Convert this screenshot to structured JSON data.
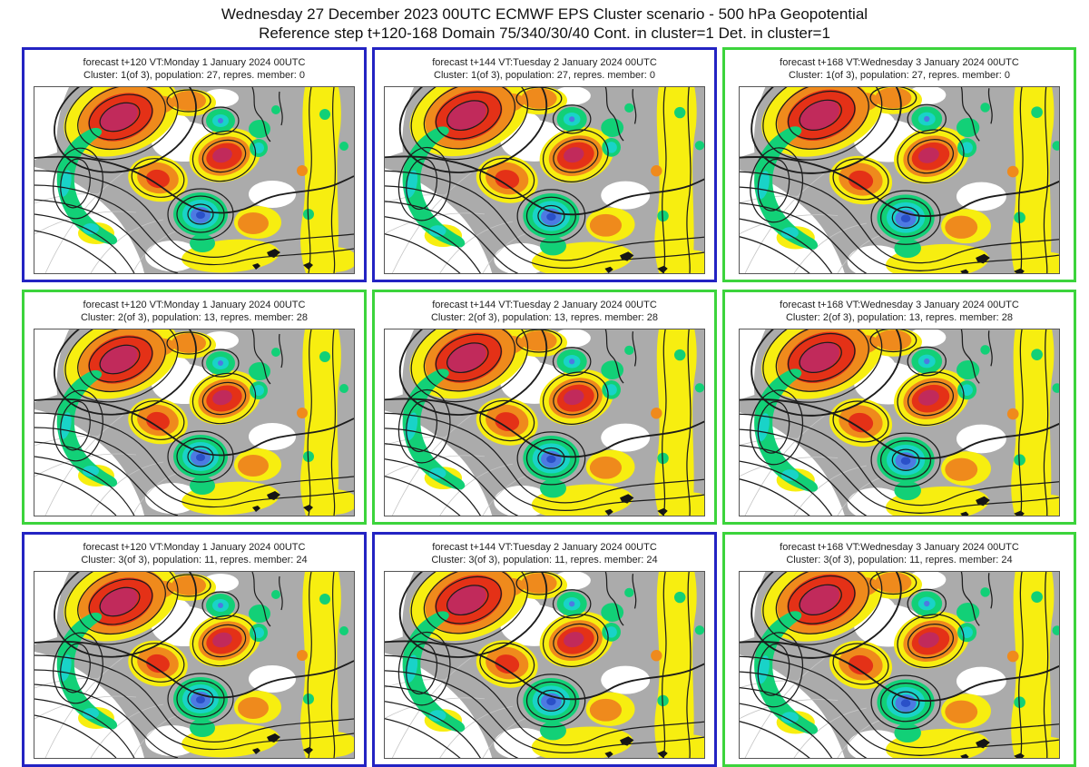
{
  "page": {
    "title_line1": "Wednesday 27 December 2023 00UTC ECMWF EPS Cluster scenario - 500 hPa Geopotential",
    "title_line2": "Reference step t+120-168 Domain 75/340/30/40 Cont. in cluster=1 Det. in cluster=1"
  },
  "palette": {
    "border_blue": "#2323c3",
    "border_green": "#3cd43c",
    "map_gray": "#ababab",
    "yellow": "#f7ee10",
    "orange": "#ef8a1c",
    "red": "#e43117",
    "magenta": "#c12a5b",
    "green": "#12d077",
    "cyan": "#19d3c8",
    "blue": "#4d7ae2",
    "deep_blue": "#2a50c8",
    "contour": "#1c1c1c"
  },
  "panels": [
    {
      "forecast_line": "forecast t+120 VT:Monday 1 January 2024 00UTC",
      "cluster_line": "Cluster: 1(of 3), population: 27, repres. member: 0",
      "border": "blue"
    },
    {
      "forecast_line": "forecast t+144 VT:Tuesday 2 January 2024 00UTC",
      "cluster_line": "Cluster: 1(of 3), population: 27, repres. member: 0",
      "border": "blue"
    },
    {
      "forecast_line": "forecast t+168 VT:Wednesday 3 January 2024 00UTC",
      "cluster_line": "Cluster: 1(of 3), population: 27, repres. member: 0",
      "border": "green"
    },
    {
      "forecast_line": "forecast t+120 VT:Monday 1 January 2024 00UTC",
      "cluster_line": "Cluster: 2(of 3), population: 13, repres. member: 28",
      "border": "green"
    },
    {
      "forecast_line": "forecast t+144 VT:Tuesday 2 January 2024 00UTC",
      "cluster_line": "Cluster: 2(of 3), population: 13, repres. member: 28",
      "border": "green"
    },
    {
      "forecast_line": "forecast t+168 VT:Wednesday 3 January 2024 00UTC",
      "cluster_line": "Cluster: 2(of 3), population: 13, repres. member: 28",
      "border": "green"
    },
    {
      "forecast_line": "forecast t+120 VT:Monday 1 January 2024 00UTC",
      "cluster_line": "Cluster: 3(of 3), population: 11, repres. member: 24",
      "border": "blue"
    },
    {
      "forecast_line": "forecast t+144 VT:Tuesday 2 January 2024 00UTC",
      "cluster_line": "Cluster: 3(of 3), population: 11, repres. member: 24",
      "border": "blue"
    },
    {
      "forecast_line": "forecast t+168 VT:Wednesday 3 January 2024 00UTC",
      "cluster_line": "Cluster: 3(of 3), population: 11, repres. member: 24",
      "border": "green"
    }
  ]
}
